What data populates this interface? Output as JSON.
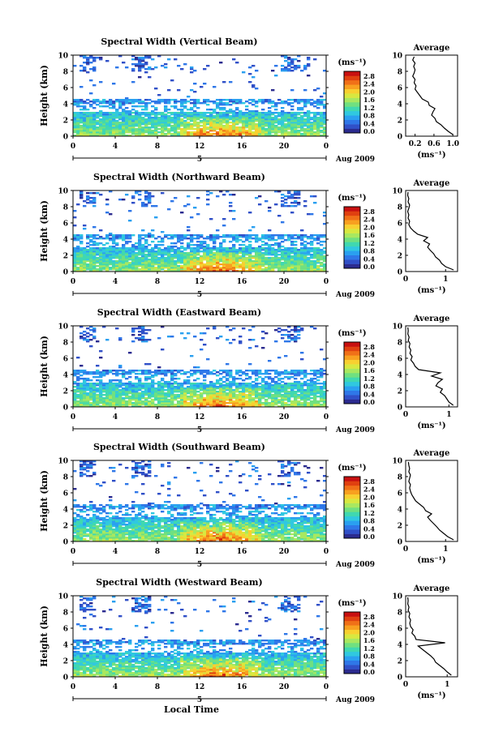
{
  "figure": {
    "xlabel": "Local Time",
    "date_label": "Aug 2009",
    "day_label": "5",
    "colorbar_unit": "(ms⁻¹)",
    "avg_title": "Average",
    "avg_xlabel": "(ms⁻¹)"
  },
  "colorbar": {
    "ticks": [
      "2.8",
      "2.4",
      "2.0",
      "1.6",
      "1.2",
      "0.8",
      "0.4",
      "0.0"
    ],
    "colors": [
      "#2b2b8f",
      "#3050c8",
      "#2f77e8",
      "#2aa0f0",
      "#30c8e0",
      "#40d8b0",
      "#70e080",
      "#a8e860",
      "#d8e840",
      "#f8d030",
      "#f8a020",
      "#f07018",
      "#e04010",
      "#c81010"
    ]
  },
  "chart_data": [
    {
      "type": "heatmap",
      "title": "Spectral Width (Vertical Beam)",
      "xlabel": "",
      "ylabel": "Height (km)",
      "xticks": [
        "0",
        "4",
        "8",
        "12",
        "16",
        "20",
        "0"
      ],
      "yticks": [
        "0",
        "2",
        "4",
        "6",
        "8",
        "10"
      ],
      "xlim": [
        0,
        24
      ],
      "ylim": [
        0,
        10
      ],
      "colorbar_range": [
        0,
        3.0
      ],
      "average": {
        "title": "Average",
        "xlabel": "(ms⁻¹)",
        "xticks": [
          "0.2",
          "0.6",
          "1.0"
        ],
        "xlim": [
          0,
          1.1
        ],
        "heights": [
          0.2,
          0.6,
          1.0,
          1.4,
          1.8,
          2.2,
          2.6,
          3.0,
          3.4,
          3.8,
          4.2,
          4.6,
          5.0,
          5.4,
          5.8,
          6.2,
          6.6,
          7.0,
          7.4,
          7.8,
          8.2,
          8.6,
          9.0,
          9.4,
          9.8
        ],
        "values": [
          1.0,
          0.9,
          0.82,
          0.75,
          0.65,
          0.62,
          0.55,
          0.58,
          0.62,
          0.5,
          0.48,
          0.35,
          0.3,
          0.25,
          0.2,
          0.22,
          0.18,
          0.2,
          0.15,
          0.18,
          0.2,
          0.17,
          0.2,
          0.15,
          0.18
        ]
      }
    },
    {
      "type": "heatmap",
      "title": "Spectral Width (Northward Beam)",
      "xlabel": "",
      "ylabel": "Height (km)",
      "xticks": [
        "0",
        "4",
        "8",
        "12",
        "16",
        "20",
        "0"
      ],
      "yticks": [
        "0",
        "2",
        "4",
        "6",
        "8",
        "10"
      ],
      "xlim": [
        0,
        24
      ],
      "ylim": [
        0,
        10
      ],
      "colorbar_range": [
        0,
        3.0
      ],
      "average": {
        "title": "Average",
        "xlabel": "(ms⁻¹)",
        "xticks": [
          "0",
          "1"
        ],
        "xlim": [
          0,
          1.3
        ],
        "heights": [
          0.2,
          0.6,
          1.0,
          1.4,
          1.8,
          2.2,
          2.6,
          3.0,
          3.4,
          3.8,
          4.2,
          4.6,
          5.0,
          5.4,
          5.8,
          6.2,
          6.6,
          7.0,
          7.4,
          7.8,
          8.2,
          8.6,
          9.0,
          9.4,
          9.8
        ],
        "values": [
          1.2,
          1.0,
          0.9,
          0.85,
          0.75,
          0.7,
          0.62,
          0.55,
          0.6,
          0.45,
          0.55,
          0.3,
          0.2,
          0.12,
          0.08,
          0.1,
          0.06,
          0.08,
          0.05,
          0.08,
          0.1,
          0.06,
          0.08,
          0.05,
          0.06
        ]
      }
    },
    {
      "type": "heatmap",
      "title": "Spectral Width (Eastward Beam)",
      "xlabel": "",
      "ylabel": "Height (km)",
      "xticks": [
        "0",
        "4",
        "8",
        "12",
        "16",
        "20",
        "0"
      ],
      "yticks": [
        "0",
        "2",
        "4",
        "6",
        "8",
        "10"
      ],
      "xlim": [
        0,
        24
      ],
      "ylim": [
        0,
        10
      ],
      "colorbar_range": [
        0,
        3.0
      ],
      "average": {
        "title": "Average",
        "xlabel": "(ms⁻¹)",
        "xticks": [
          "0",
          "1"
        ],
        "xlim": [
          0,
          1.2
        ],
        "heights": [
          0.2,
          0.6,
          1.0,
          1.4,
          1.8,
          2.2,
          2.6,
          3.0,
          3.4,
          3.8,
          4.2,
          4.6,
          5.0,
          5.4,
          5.8,
          6.2,
          6.6,
          7.0,
          7.4,
          7.8,
          8.2,
          8.6,
          9.0,
          9.4,
          9.8
        ],
        "values": [
          1.1,
          1.0,
          0.95,
          0.9,
          0.8,
          0.85,
          0.7,
          0.75,
          0.85,
          0.6,
          0.8,
          0.3,
          0.22,
          0.18,
          0.12,
          0.15,
          0.1,
          0.12,
          0.08,
          0.1,
          0.06,
          0.08,
          0.05,
          0.06,
          0.05
        ]
      }
    },
    {
      "type": "heatmap",
      "title": "Spectral Width (Southward Beam)",
      "xlabel": "",
      "ylabel": "Height (km)",
      "xticks": [
        "0",
        "4",
        "8",
        "12",
        "16",
        "20",
        "0"
      ],
      "yticks": [
        "0",
        "2",
        "4",
        "6",
        "8",
        "10"
      ],
      "xlim": [
        0,
        24
      ],
      "ylim": [
        0,
        10
      ],
      "colorbar_range": [
        0,
        3.0
      ],
      "average": {
        "title": "Average",
        "xlabel": "(ms⁻¹)",
        "xticks": [
          "0",
          "1"
        ],
        "xlim": [
          0,
          1.3
        ],
        "heights": [
          0.2,
          0.6,
          1.0,
          1.4,
          1.8,
          2.2,
          2.6,
          3.0,
          3.4,
          3.8,
          4.2,
          4.6,
          5.0,
          5.4,
          5.8,
          6.2,
          6.6,
          7.0,
          7.4,
          7.8,
          8.2,
          8.6,
          9.0,
          9.4,
          9.8
        ],
        "values": [
          1.2,
          1.05,
          0.95,
          0.85,
          0.78,
          0.7,
          0.62,
          0.55,
          0.65,
          0.5,
          0.45,
          0.35,
          0.25,
          0.2,
          0.15,
          0.12,
          0.1,
          0.12,
          0.08,
          0.1,
          0.12,
          0.08,
          0.1,
          0.08,
          0.07
        ]
      }
    },
    {
      "type": "heatmap",
      "title": "Spectral Width (Westward Beam)",
      "xlabel": "Local Time",
      "ylabel": "Height (km)",
      "xticks": [
        "0",
        "4",
        "8",
        "12",
        "16",
        "20",
        "0"
      ],
      "yticks": [
        "0",
        "2",
        "4",
        "6",
        "8",
        "10"
      ],
      "xlim": [
        0,
        24
      ],
      "ylim": [
        0,
        10
      ],
      "colorbar_range": [
        0,
        3.0
      ],
      "average": {
        "title": "Average",
        "xlabel": "(ms⁻¹)",
        "xticks": [
          "0",
          "1"
        ],
        "xlim": [
          0,
          1.25
        ],
        "heights": [
          0.2,
          0.6,
          1.0,
          1.4,
          1.8,
          2.2,
          2.6,
          3.0,
          3.4,
          3.8,
          4.2,
          4.6,
          5.0,
          5.4,
          5.8,
          6.2,
          6.6,
          7.0,
          7.4,
          7.8,
          8.2,
          8.6,
          9.0,
          9.4,
          9.8
        ],
        "values": [
          1.1,
          1.0,
          0.92,
          0.82,
          0.72,
          0.68,
          0.6,
          0.5,
          0.4,
          0.3,
          0.95,
          0.25,
          0.22,
          0.15,
          0.18,
          0.12,
          0.1,
          0.12,
          0.08,
          0.1,
          0.06,
          0.08,
          0.05,
          0.06,
          0.05
        ]
      }
    }
  ]
}
